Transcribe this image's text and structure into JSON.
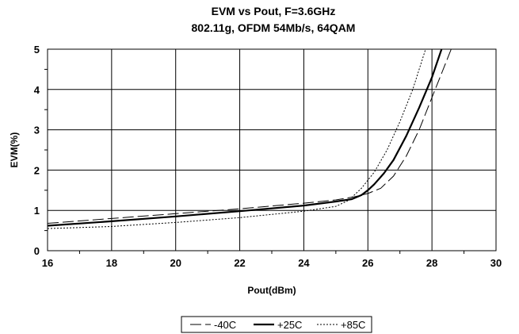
{
  "chart_data": {
    "type": "line",
    "title": "EVM vs Pout, F=3.6GHz",
    "subtitle": "802.11g, OFDM 54Mb/s, 64QAM",
    "xlabel": "Pout(dBm)",
    "ylabel": "EVM(%)",
    "xlim": [
      16,
      30
    ],
    "ylim": [
      0,
      5
    ],
    "x_ticks": [
      16,
      18,
      20,
      22,
      24,
      26,
      28,
      30
    ],
    "y_ticks": [
      0,
      1,
      2,
      3,
      4,
      5
    ],
    "grid": true,
    "legend_position": "bottom-center",
    "series": [
      {
        "name": "-40C",
        "style": "long-dash",
        "color": "#000000",
        "points": [
          [
            16,
            0.68
          ],
          [
            18,
            0.8
          ],
          [
            20,
            0.92
          ],
          [
            22,
            1.04
          ],
          [
            24,
            1.18
          ],
          [
            25,
            1.26
          ],
          [
            25.6,
            1.34
          ],
          [
            26,
            1.42
          ],
          [
            26.4,
            1.55
          ],
          [
            26.8,
            1.85
          ],
          [
            27.2,
            2.35
          ],
          [
            27.6,
            3.0
          ],
          [
            28.0,
            3.8
          ],
          [
            28.3,
            4.4
          ],
          [
            28.6,
            5.0
          ]
        ]
      },
      {
        "name": "+25C",
        "style": "solid-bold",
        "color": "#000000",
        "points": [
          [
            16,
            0.62
          ],
          [
            18,
            0.73
          ],
          [
            20,
            0.85
          ],
          [
            22,
            0.98
          ],
          [
            24,
            1.12
          ],
          [
            25,
            1.22
          ],
          [
            25.5,
            1.28
          ],
          [
            25.8,
            1.38
          ],
          [
            26.0,
            1.5
          ],
          [
            26.2,
            1.65
          ],
          [
            26.5,
            1.92
          ],
          [
            26.8,
            2.25
          ],
          [
            27.2,
            2.85
          ],
          [
            27.6,
            3.55
          ],
          [
            28.0,
            4.3
          ],
          [
            28.3,
            5.0
          ]
        ]
      },
      {
        "name": "+85C",
        "style": "dotted",
        "color": "#000000",
        "points": [
          [
            16,
            0.55
          ],
          [
            18,
            0.6
          ],
          [
            20,
            0.7
          ],
          [
            22,
            0.82
          ],
          [
            24,
            0.98
          ],
          [
            25,
            1.1
          ],
          [
            25.4,
            1.25
          ],
          [
            25.8,
            1.55
          ],
          [
            26.2,
            1.95
          ],
          [
            26.6,
            2.5
          ],
          [
            27.0,
            3.2
          ],
          [
            27.4,
            4.0
          ],
          [
            27.8,
            5.0
          ]
        ]
      }
    ]
  }
}
